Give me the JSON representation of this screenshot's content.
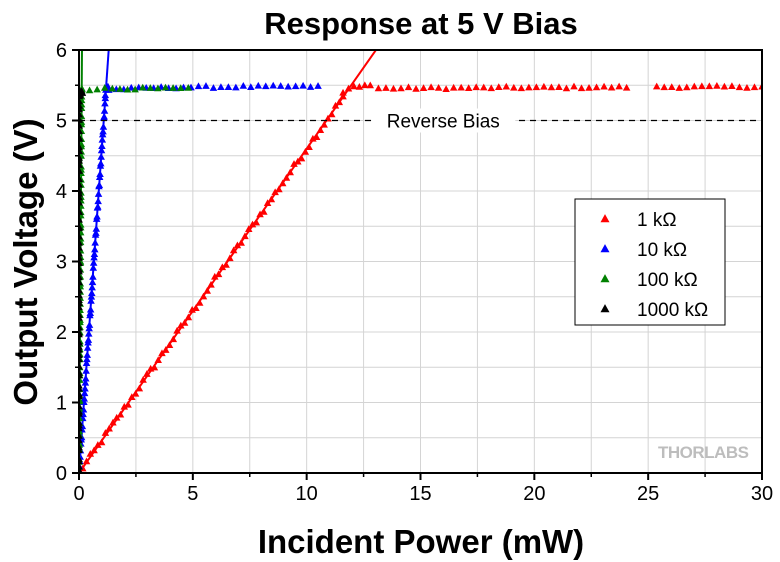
{
  "chart_data": {
    "type": "scatter",
    "title": "Response at 5 V Bias",
    "xlabel": "Incident Power (mW)",
    "ylabel": "Output Voltage (V)",
    "xlim": [
      0,
      30
    ],
    "ylim": [
      0,
      6
    ],
    "xticks": [
      0,
      5,
      10,
      15,
      20,
      25,
      30
    ],
    "yticks": [
      0,
      1,
      2,
      3,
      4,
      5,
      6
    ],
    "grid": true,
    "legend_position": "right",
    "annotation": {
      "text": "Reverse Bias",
      "y": 5.0,
      "x": 16
    },
    "logo": "THORLABS",
    "series": [
      {
        "name": "1 kΩ",
        "color": "#ff0000",
        "slope": 0.46,
        "saturation": 5.5,
        "x_max": 30,
        "fit_line": true
      },
      {
        "name": "10 kΩ",
        "color": "#0000ff",
        "slope": 4.6,
        "saturation": 5.48,
        "x_max": 10.5,
        "fit_line": true
      },
      {
        "name": "100 kΩ",
        "color": "#008000",
        "slope": 46,
        "saturation": 5.45,
        "x_max": 4.8,
        "fit_line": true
      },
      {
        "name": "1000 kΩ",
        "color": "#000000",
        "slope": 460,
        "saturation": 5.4,
        "x_max": 0.15,
        "fit_line": false
      }
    ]
  }
}
